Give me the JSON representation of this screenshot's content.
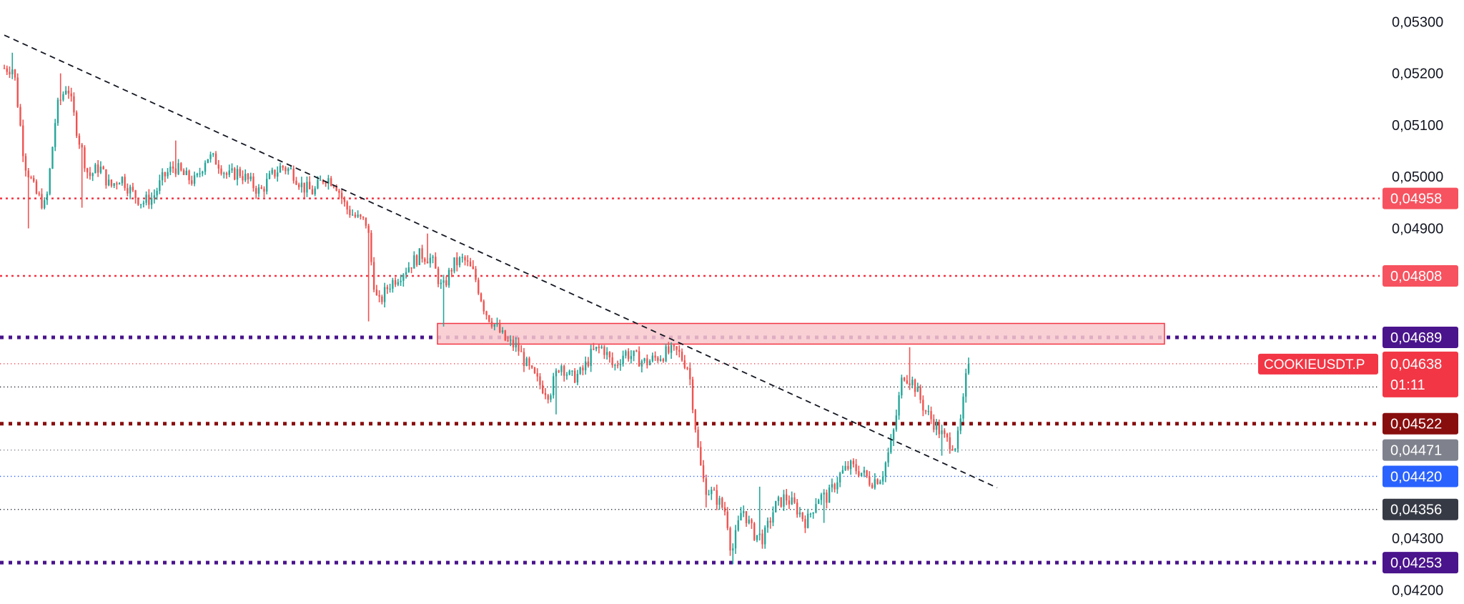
{
  "chart_data": {
    "type": "candlestick",
    "symbol": "COOKIEUSDT.P",
    "countdown": "01:11",
    "ylim": [
      0.04173,
      0.05342
    ],
    "y_ticks": [
      {
        "value": 0.053,
        "label": "0,05300"
      },
      {
        "value": 0.052,
        "label": "0,05200"
      },
      {
        "value": 0.051,
        "label": "0,05100"
      },
      {
        "value": 0.05,
        "label": "0,05000"
      },
      {
        "value": 0.049,
        "label": "0,04900"
      },
      {
        "value": 0.043,
        "label": "0,04300"
      },
      {
        "value": 0.042,
        "label": "0,04200"
      }
    ],
    "price_lines": [
      {
        "value": 0.04958,
        "label": "0,04958",
        "color": "#f23645",
        "tag_color": "#f7525f",
        "style": "dotted"
      },
      {
        "value": 0.04808,
        "label": "0,04808",
        "color": "#f23645",
        "tag_color": "#f7525f",
        "style": "dotted"
      },
      {
        "value": 0.04689,
        "label": "0,04689",
        "color": "#4a148c",
        "tag_color": "#4a148c",
        "style": "bold-dotted"
      },
      {
        "value": 0.04638,
        "label": "0,04638",
        "color": "#f23645",
        "tag_color": "#f23645",
        "style": "thin-dotted",
        "current": true
      },
      {
        "value": 0.04522,
        "label": "0,04522",
        "color": "#880e0e",
        "tag_color": "#880e0e",
        "style": "bold-dotted"
      },
      {
        "value": 0.04471,
        "label": "0,04471",
        "color": "#787b86",
        "tag_color": "#7f828c",
        "style": "thin-dotted"
      },
      {
        "value": 0.0442,
        "label": "0,04420",
        "color": "#2962ff",
        "tag_color": "#2962ff",
        "style": "thin-dotted"
      },
      {
        "value": 0.04356,
        "label": "0,04356",
        "color": "#131722",
        "tag_color": "#363a45",
        "style": "thin-dotted"
      },
      {
        "value": 0.04253,
        "label": "0,04253",
        "color": "#4a148c",
        "tag_color": "#4a148c",
        "style": "bold-dotted"
      }
    ],
    "black_line_value": 0.04593,
    "zone": {
      "top": 0.04716,
      "bottom": 0.04676,
      "color": "#f8c8cc"
    },
    "trendline": [
      [
        0.05274,
        0
      ],
      [
        0.04398,
        1
      ]
    ],
    "colors": {
      "up": "#26a69a",
      "down": "#ef5350"
    },
    "anchors": [
      [
        0,
        0.0521
      ],
      [
        4,
        0.0521
      ],
      [
        8,
        0.0503
      ],
      [
        12,
        0.0497
      ],
      [
        16,
        0.0494
      ],
      [
        20,
        0.0513
      ],
      [
        24,
        0.0518
      ],
      [
        28,
        0.0508
      ],
      [
        32,
        0.05
      ],
      [
        36,
        0.0502
      ],
      [
        40,
        0.0498
      ],
      [
        44,
        0.05
      ],
      [
        48,
        0.0497
      ],
      [
        52,
        0.0495
      ],
      [
        56,
        0.0496
      ],
      [
        60,
        0.05
      ],
      [
        64,
        0.0502
      ],
      [
        68,
        0.05
      ],
      [
        72,
        0.0499
      ],
      [
        76,
        0.0504
      ],
      [
        80,
        0.0503
      ],
      [
        84,
        0.05
      ],
      [
        88,
        0.0501
      ],
      [
        92,
        0.0499
      ],
      [
        96,
        0.0497
      ],
      [
        100,
        0.05
      ],
      [
        104,
        0.0502
      ],
      [
        108,
        0.0501
      ],
      [
        112,
        0.0498
      ],
      [
        116,
        0.0497
      ],
      [
        120,
        0.05
      ],
      [
        124,
        0.0499
      ],
      [
        128,
        0.0494
      ],
      [
        132,
        0.0492
      ],
      [
        136,
        0.0491
      ],
      [
        138,
        0.0481
      ],
      [
        140,
        0.0475
      ],
      [
        144,
        0.0479
      ],
      [
        148,
        0.0481
      ],
      [
        152,
        0.0483
      ],
      [
        156,
        0.0485
      ],
      [
        160,
        0.0484
      ],
      [
        164,
        0.0478
      ],
      [
        168,
        0.0483
      ],
      [
        172,
        0.0484
      ],
      [
        176,
        0.0481
      ],
      [
        180,
        0.0474
      ],
      [
        184,
        0.0471
      ],
      [
        188,
        0.0468
      ],
      [
        192,
        0.0467
      ],
      [
        196,
        0.0463
      ],
      [
        200,
        0.046
      ],
      [
        204,
        0.0458
      ],
      [
        208,
        0.0464
      ],
      [
        212,
        0.0461
      ],
      [
        216,
        0.0462
      ],
      [
        220,
        0.0466
      ],
      [
        224,
        0.0467
      ],
      [
        228,
        0.0463
      ],
      [
        232,
        0.0466
      ],
      [
        236,
        0.0465
      ],
      [
        240,
        0.0464
      ],
      [
        244,
        0.0465
      ],
      [
        248,
        0.0466
      ],
      [
        252,
        0.0466
      ],
      [
        256,
        0.0463
      ],
      [
        258,
        0.0454
      ],
      [
        260,
        0.0445
      ],
      [
        262,
        0.044
      ],
      [
        266,
        0.0438
      ],
      [
        270,
        0.0435
      ],
      [
        272,
        0.0427
      ],
      [
        276,
        0.0436
      ],
      [
        280,
        0.0431
      ],
      [
        284,
        0.043
      ],
      [
        288,
        0.0436
      ],
      [
        292,
        0.0438
      ],
      [
        296,
        0.0436
      ],
      [
        300,
        0.0433
      ],
      [
        304,
        0.0438
      ],
      [
        308,
        0.0438
      ],
      [
        312,
        0.0442
      ],
      [
        316,
        0.0444
      ],
      [
        320,
        0.0443
      ],
      [
        324,
        0.0441
      ],
      [
        328,
        0.0442
      ],
      [
        332,
        0.0449
      ],
      [
        336,
        0.0462
      ],
      [
        340,
        0.046
      ],
      [
        344,
        0.0455
      ],
      [
        348,
        0.0452
      ],
      [
        352,
        0.0449
      ],
      [
        356,
        0.0448
      ],
      [
        358,
        0.0454
      ],
      [
        360,
        0.0463
      ]
    ],
    "wick_overrides": [
      [
        3,
        0.0524,
        null
      ],
      [
        9,
        null,
        0.049
      ],
      [
        21,
        0.052,
        null
      ],
      [
        29,
        null,
        0.0494
      ],
      [
        64,
        0.0507,
        null
      ],
      [
        104,
        0.0501,
        null
      ],
      [
        136,
        null,
        0.0472
      ],
      [
        158,
        0.0489,
        null
      ],
      [
        164,
        null,
        0.0471
      ],
      [
        206,
        null,
        0.0454
      ],
      [
        262,
        null,
        0.0436
      ],
      [
        272,
        null,
        0.0425
      ],
      [
        282,
        0.044,
        null
      ],
      [
        283,
        null,
        0.0428
      ],
      [
        306,
        null,
        0.0433
      ],
      [
        318,
        0.0445,
        null
      ],
      [
        338,
        0.0467,
        null
      ],
      [
        350,
        null,
        0.0446
      ],
      [
        360,
        0.0465,
        null
      ]
    ]
  }
}
